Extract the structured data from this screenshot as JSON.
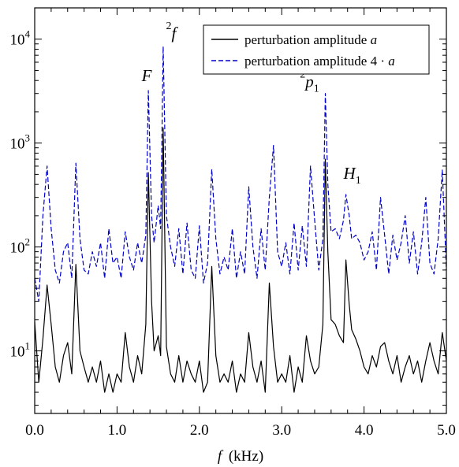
{
  "chart_data": {
    "type": "line",
    "xlabel": "f (kHz)",
    "xlabel_italic": "f",
    "xlabel_unit": "(kHz)",
    "xlim": [
      0.0,
      5.0
    ],
    "ylim": [
      2.5,
      20000
    ],
    "yscale": "log",
    "x_ticks": [
      "0.0",
      "1.0",
      "2.0",
      "3.0",
      "4.0",
      "5.0"
    ],
    "y_ticks": [
      {
        "value": 10,
        "base": "10",
        "exp": "1"
      },
      {
        "value": 100,
        "base": "10",
        "exp": "2"
      },
      {
        "value": 1000,
        "base": "10",
        "exp": "3"
      },
      {
        "value": 10000,
        "base": "10",
        "exp": "4"
      }
    ],
    "grid": false,
    "legend_position": "top-right",
    "series": [
      {
        "name": "perturbation amplitude a",
        "legend_text": "perturbation amplitude ",
        "legend_italic": "a",
        "color": "#000000",
        "style": "solid",
        "x": [
          0.0,
          0.05,
          0.1,
          0.15,
          0.2,
          0.25,
          0.3,
          0.35,
          0.4,
          0.45,
          0.5,
          0.55,
          0.6,
          0.65,
          0.7,
          0.75,
          0.8,
          0.85,
          0.9,
          0.95,
          1.0,
          1.05,
          1.1,
          1.15,
          1.2,
          1.25,
          1.3,
          1.35,
          1.38,
          1.42,
          1.45,
          1.5,
          1.53,
          1.56,
          1.6,
          1.65,
          1.7,
          1.75,
          1.8,
          1.85,
          1.9,
          1.95,
          2.0,
          2.05,
          2.1,
          2.15,
          2.2,
          2.25,
          2.3,
          2.35,
          2.4,
          2.45,
          2.5,
          2.55,
          2.6,
          2.65,
          2.7,
          2.75,
          2.8,
          2.85,
          2.9,
          2.95,
          3.0,
          3.05,
          3.1,
          3.15,
          3.2,
          3.25,
          3.3,
          3.35,
          3.4,
          3.45,
          3.5,
          3.53,
          3.56,
          3.6,
          3.65,
          3.7,
          3.75,
          3.78,
          3.82,
          3.85,
          3.9,
          3.95,
          4.0,
          4.05,
          4.1,
          4.15,
          4.2,
          4.25,
          4.3,
          4.35,
          4.4,
          4.45,
          4.5,
          4.55,
          4.6,
          4.65,
          4.7,
          4.75,
          4.8,
          4.85,
          4.9,
          4.95,
          5.0
        ],
        "y": [
          19,
          5,
          13,
          43,
          18,
          7,
          5,
          9,
          12,
          6,
          68,
          10,
          7,
          5,
          7,
          5,
          8,
          4,
          6,
          4,
          6,
          5,
          15,
          7,
          5,
          9,
          6,
          18,
          520,
          30,
          10,
          14,
          9,
          1400,
          11,
          6,
          5,
          9,
          5,
          8,
          6,
          5,
          8,
          4,
          5,
          65,
          9,
          5,
          6,
          5,
          8,
          4,
          6,
          5,
          15,
          7,
          5,
          8,
          4,
          45,
          11,
          5,
          6,
          5,
          9,
          4,
          7,
          5,
          14,
          8,
          6,
          7,
          18,
          700,
          90,
          20,
          18,
          14,
          12,
          75,
          28,
          16,
          13,
          10,
          7,
          6,
          9,
          7,
          11,
          12,
          8,
          6,
          9,
          5,
          7,
          9,
          6,
          8,
          5,
          8,
          12,
          8,
          6,
          15,
          8
        ]
      },
      {
        "name": "perturbation amplitude 4 · a",
        "legend_text": "perturbation amplitude 4 · ",
        "legend_italic": "a",
        "color": "#0000cc",
        "style": "dashed",
        "x": [
          0.0,
          0.05,
          0.1,
          0.15,
          0.2,
          0.25,
          0.3,
          0.35,
          0.4,
          0.45,
          0.5,
          0.55,
          0.6,
          0.65,
          0.7,
          0.75,
          0.8,
          0.85,
          0.9,
          0.95,
          1.0,
          1.05,
          1.1,
          1.15,
          1.2,
          1.25,
          1.3,
          1.35,
          1.38,
          1.42,
          1.45,
          1.5,
          1.53,
          1.56,
          1.6,
          1.65,
          1.7,
          1.75,
          1.8,
          1.85,
          1.9,
          1.95,
          2.0,
          2.05,
          2.1,
          2.15,
          2.2,
          2.25,
          2.3,
          2.35,
          2.4,
          2.45,
          2.5,
          2.55,
          2.6,
          2.65,
          2.7,
          2.75,
          2.8,
          2.85,
          2.9,
          2.95,
          3.0,
          3.05,
          3.1,
          3.15,
          3.2,
          3.25,
          3.3,
          3.35,
          3.4,
          3.45,
          3.5,
          3.53,
          3.56,
          3.6,
          3.65,
          3.7,
          3.75,
          3.78,
          3.82,
          3.85,
          3.9,
          3.95,
          4.0,
          4.05,
          4.1,
          4.15,
          4.2,
          4.25,
          4.3,
          4.35,
          4.4,
          4.45,
          4.5,
          4.55,
          4.6,
          4.65,
          4.7,
          4.75,
          4.8,
          4.85,
          4.9,
          4.95,
          5.0
        ],
        "y": [
          50,
          30,
          200,
          600,
          150,
          60,
          45,
          90,
          110,
          50,
          640,
          120,
          60,
          55,
          90,
          65,
          110,
          50,
          150,
          70,
          80,
          50,
          140,
          80,
          60,
          110,
          70,
          130,
          3200,
          200,
          110,
          250,
          150,
          8500,
          200,
          100,
          65,
          150,
          55,
          170,
          60,
          50,
          160,
          45,
          70,
          560,
          120,
          55,
          80,
          60,
          150,
          50,
          90,
          55,
          380,
          100,
          50,
          150,
          60,
          300,
          950,
          90,
          65,
          110,
          55,
          170,
          60,
          160,
          65,
          600,
          180,
          60,
          120,
          3000,
          400,
          140,
          150,
          120,
          180,
          320,
          200,
          120,
          130,
          110,
          75,
          90,
          140,
          60,
          300,
          130,
          55,
          130,
          75,
          110,
          200,
          70,
          140,
          55,
          110,
          300,
          70,
          55,
          120,
          550,
          60
        ]
      }
    ],
    "annotations": [
      {
        "id": "F",
        "label": "F",
        "sup": "",
        "sub": "",
        "x": 1.38,
        "y": 3200
      },
      {
        "id": "2f",
        "label": "f",
        "sup": "2",
        "sub": "",
        "x": 1.56,
        "y": 8500
      },
      {
        "id": "2p1",
        "label": "p",
        "sup": "2",
        "sub": "1",
        "x": 3.53,
        "y": 3000
      },
      {
        "id": "H1",
        "label": "H",
        "sup": "",
        "sub": "1",
        "x": 3.78,
        "y": 320
      }
    ]
  }
}
